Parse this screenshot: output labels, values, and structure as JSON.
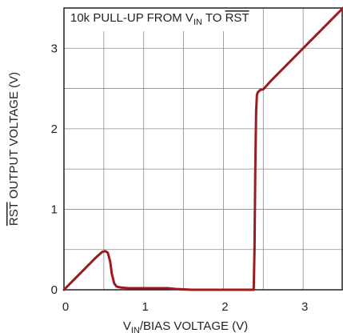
{
  "chart_data": {
    "type": "line",
    "title": "10k PULL-UP FROM V_IN TO RST",
    "title_parts": {
      "prefix": "10k PULL-UP FROM V",
      "subscript": "IN",
      "middle": " TO ",
      "overline": "RST"
    },
    "xlabel": "V_IN/BIAS VOLTAGE (V)",
    "xlabel_parts": {
      "prefix": "V",
      "subscript": "IN",
      "suffix": "/BIAS VOLTAGE (V)"
    },
    "ylabel": "RST OUTPUT VOLTAGE (V)",
    "ylabel_parts": {
      "overline": "RST",
      "suffix": " OUTPUT VOLTAGE (V)"
    },
    "xlim": [
      0,
      3.5
    ],
    "ylim": [
      0,
      3.5
    ],
    "x_ticks": [
      "0",
      "1",
      "2",
      "3"
    ],
    "y_ticks": [
      "0",
      "1",
      "2",
      "3"
    ],
    "grid": true,
    "line_color": "#9b1b1f",
    "series": [
      {
        "x": [
          0.0,
          0.1,
          0.2,
          0.3,
          0.4,
          0.48,
          0.52,
          0.55,
          0.58,
          0.6,
          0.63,
          0.66,
          0.7,
          0.8,
          1.0,
          1.2,
          1.3,
          1.4,
          1.6,
          2.0,
          2.38,
          2.39,
          2.4,
          2.41,
          2.42,
          2.43,
          2.44,
          2.46,
          2.5,
          2.6,
          2.8,
          3.0,
          3.2,
          3.4,
          3.5
        ],
        "y": [
          0.0,
          0.1,
          0.2,
          0.3,
          0.4,
          0.47,
          0.48,
          0.46,
          0.35,
          0.2,
          0.08,
          0.04,
          0.03,
          0.02,
          0.02,
          0.02,
          0.02,
          0.01,
          0.0,
          0.0,
          0.0,
          0.5,
          1.5,
          2.2,
          2.42,
          2.45,
          2.46,
          2.48,
          2.49,
          2.6,
          2.8,
          3.0,
          3.2,
          3.4,
          3.5
        ]
      }
    ]
  }
}
